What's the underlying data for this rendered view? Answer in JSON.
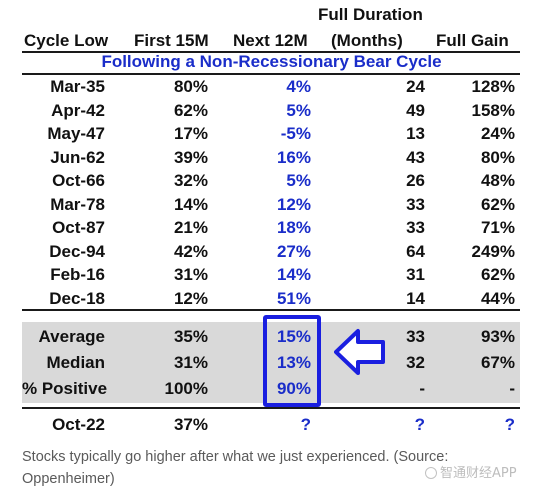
{
  "headers": {
    "cycle_low": "Cycle Low",
    "first_15m": "First 15M",
    "next_12m": "Next 12M",
    "full_duration_line1": "Full Duration",
    "full_duration_line2": "(Months)",
    "full_gain": "Full Gain"
  },
  "subtitle": "Following a Non-Recessionary Bear Cycle",
  "rows": [
    {
      "cycle": "Mar-35",
      "first": "80%",
      "next": "4%",
      "dur": "24",
      "gain": "128%"
    },
    {
      "cycle": "Apr-42",
      "first": "62%",
      "next": "5%",
      "dur": "49",
      "gain": "158%"
    },
    {
      "cycle": "May-47",
      "first": "17%",
      "next": "-5%",
      "dur": "13",
      "gain": "24%"
    },
    {
      "cycle": "Jun-62",
      "first": "39%",
      "next": "16%",
      "dur": "43",
      "gain": "80%"
    },
    {
      "cycle": "Oct-66",
      "first": "32%",
      "next": "5%",
      "dur": "26",
      "gain": "48%"
    },
    {
      "cycle": "Mar-78",
      "first": "14%",
      "next": "12%",
      "dur": "33",
      "gain": "62%"
    },
    {
      "cycle": "Oct-87",
      "first": "21%",
      "next": "18%",
      "dur": "33",
      "gain": "71%"
    },
    {
      "cycle": "Dec-94",
      "first": "42%",
      "next": "27%",
      "dur": "64",
      "gain": "249%"
    },
    {
      "cycle": "Feb-16",
      "first": "31%",
      "next": "14%",
      "dur": "31",
      "gain": "62%"
    },
    {
      "cycle": "Dec-18",
      "first": "12%",
      "next": "51%",
      "dur": "14",
      "gain": "44%"
    }
  ],
  "summary": [
    {
      "label": "Average",
      "first": "35%",
      "next": "15%",
      "dur": "33",
      "gain": "93%"
    },
    {
      "label": "Median",
      "first": "31%",
      "next": "13%",
      "dur": "32",
      "gain": "67%"
    },
    {
      "label": "% Positive",
      "first": "100%",
      "next": "90%",
      "dur": "-",
      "gain": "-"
    }
  ],
  "current": {
    "cycle": "Oct-22",
    "first": "37%",
    "next": "?",
    "dur": "?",
    "gain": "?"
  },
  "caption": "Stocks typically go higher after what we just experienced. (Source: Oppenheimer)",
  "watermark": "智通财经APP",
  "colors": {
    "accent_blue": "#1a2dc9",
    "box_blue": "#1a1fe0",
    "summary_band": "#d9d9d9"
  },
  "arrow_icon": "left-arrow-icon"
}
